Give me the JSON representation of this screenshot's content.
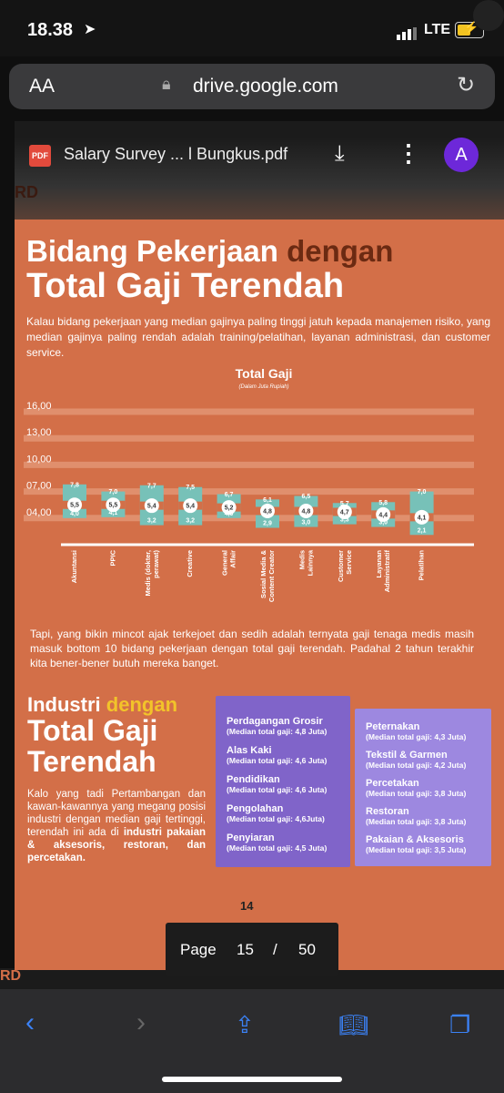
{
  "status": {
    "time": "18.38",
    "network": "LTE"
  },
  "browser": {
    "text_size_label": "AA",
    "url": "drive.google.com"
  },
  "viewer": {
    "pdf_badge": "PDF",
    "file_name": "Salary Survey ... l Bungkus.pdf",
    "avatar_letter": "A"
  },
  "page": {
    "edge_mark": "RD",
    "heading_part1": "Bidang Pekerjaan ",
    "heading_accent": "dengan",
    "heading_part2": "Total Gaji Terendah",
    "intro": "Kalau bidang pekerjaan yang median gajinya paling tinggi jatuh kepada manajemen risiko, yang median gajinya paling rendah adalah training/pelatihan, layanan administrasi, dan customer service.",
    "paragraph2": "Tapi, yang bikin mincot ajak terkejoet dan sedih adalah ternyata gaji tenaga medis masih masuk bottom 10 bidang pekerjaan dengan total gaji terendah. Padahal 2 tahun terakhir kita bener-bener butuh mereka banget.",
    "industry_heading_part1": "Industri ",
    "industry_heading_accent": "dengan",
    "industry_heading_part2": "Total Gaji Terendah",
    "industry_text": "Kalo yang tadi Pertambangan dan kawan-kawannya yang megang posisi industri dengan median gaji tertinggi, terendah ini ada di ",
    "industry_text_bold": "industri pakaian & aksesoris, restoran, dan percetakan.",
    "page_number": "14"
  },
  "industries_left": [
    {
      "name": "Perdagangan Grosir",
      "median": "(Median total gaji: 4,8 Juta)"
    },
    {
      "name": "Alas Kaki",
      "median": "(Median total gaji: 4,6 Juta)"
    },
    {
      "name": "Pendidikan",
      "median": "(Median total gaji: 4,6 Juta)"
    },
    {
      "name": "Pengolahan",
      "median": "(Median total gaji: 4,6Juta)"
    },
    {
      "name": "Penyiaran",
      "median": "(Median total gaji: 4,5 Juta)"
    }
  ],
  "industries_right": [
    {
      "name": "Peternakan",
      "median": "(Median total gaji: 4,3 Juta)"
    },
    {
      "name": "Tekstil & Garmen",
      "median": "(Median total gaji: 4,2 Juta)"
    },
    {
      "name": "Percetakan",
      "median": "(Median total gaji: 3,8 Juta)"
    },
    {
      "name": "Restoran",
      "median": "(Median total gaji: 3,8 Juta)"
    },
    {
      "name": "Pakaian & Aksesoris",
      "median": "(Median total gaji: 3,5 Juta)"
    }
  ],
  "page_indicator": {
    "label": "Page",
    "current": "15",
    "separator": "/",
    "total": "50"
  },
  "colors": {
    "bar": "#77c1b8",
    "gridline": "#e08f6d",
    "background": "#d36f48",
    "accent": "#6b2a12"
  },
  "chart_data": {
    "type": "range-bar",
    "title": "Total Gaji",
    "subtitle": "(Dalam Juta Rupiah)",
    "ylim": [
      1,
      16
    ],
    "yticks": [
      4,
      7,
      10,
      13,
      16
    ],
    "ytick_labels": [
      "04,00",
      "07,00",
      "10,00",
      "13,00",
      "16,00"
    ],
    "grid": true,
    "categories": [
      "Akuntansi",
      "PPIC",
      "Medis (dokter, perawat)",
      "Creative",
      "General Affair",
      "Sosial Media & Content Creator",
      "Medis Lainnya",
      "Customer Service",
      "Layanan Administratif",
      "Pelatihan"
    ],
    "low": [
      4.0,
      4.1,
      3.2,
      3.2,
      4.0,
      2.9,
      3.0,
      3.3,
      3.0,
      2.1
    ],
    "median": [
      5.5,
      5.5,
      5.4,
      5.4,
      5.2,
      4.8,
      4.8,
      4.7,
      4.4,
      4.1
    ],
    "high": [
      7.8,
      7.0,
      7.7,
      7.5,
      6.7,
      6.1,
      6.5,
      5.7,
      5.8,
      7.0
    ],
    "low_labels": [
      "4,0",
      "4,1",
      "3,2",
      "3,2",
      "4,0",
      "2,9",
      "3,0",
      "3,3",
      "3,0",
      "2,1"
    ],
    "median_labels": [
      "5,5",
      "5,5",
      "5,4",
      "5,4",
      "5,2",
      "4,8",
      "4,8",
      "4,7",
      "4,4",
      "4,1"
    ],
    "high_labels": [
      "7,8",
      "7,0",
      "7,7",
      "7,5",
      "6,7",
      "6,1",
      "6,5",
      "5,7",
      "5,8",
      "7,0"
    ]
  }
}
